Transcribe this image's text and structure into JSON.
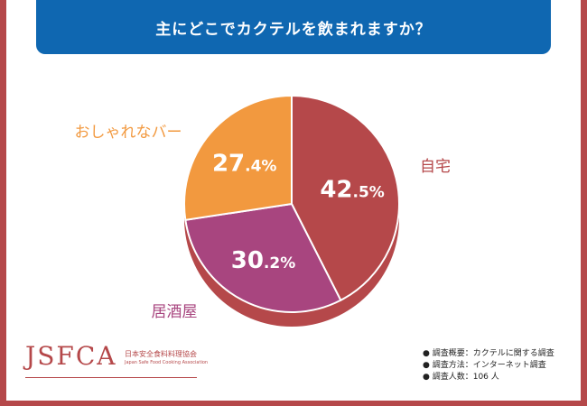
{
  "title": "主にどこでカクテルを飲まれますか？",
  "chart_data": {
    "type": "pie",
    "slices": [
      {
        "label": "自宅",
        "value": 42.5,
        "display_big": "42",
        "display_small": ".5%",
        "color": "#b5484a",
        "shade": "#a33d3f"
      },
      {
        "label": "居酒屋",
        "value": 30.2,
        "display_big": "30",
        "display_small": ".2%",
        "color": "#a8457f",
        "shade": "#8f3a6b"
      },
      {
        "label": "おしゃれなバー",
        "value": 27.4,
        "display_big": "27",
        "display_small": ".4%",
        "color": "#f2993f",
        "shade": "#d98330"
      }
    ],
    "side_color": "#b5484a"
  },
  "logo": {
    "mark": "JSFCA",
    "jp": "日本安全食料料理協会",
    "en": "Japan Safe Food Cooking Association"
  },
  "notes": [
    "● 調査概要：カクテルに関する調査",
    "● 調査方法：インターネット調査",
    "● 調査人数：106 人"
  ],
  "colors": {
    "background": "#b5484a",
    "title_bar": "#0f67b1"
  }
}
